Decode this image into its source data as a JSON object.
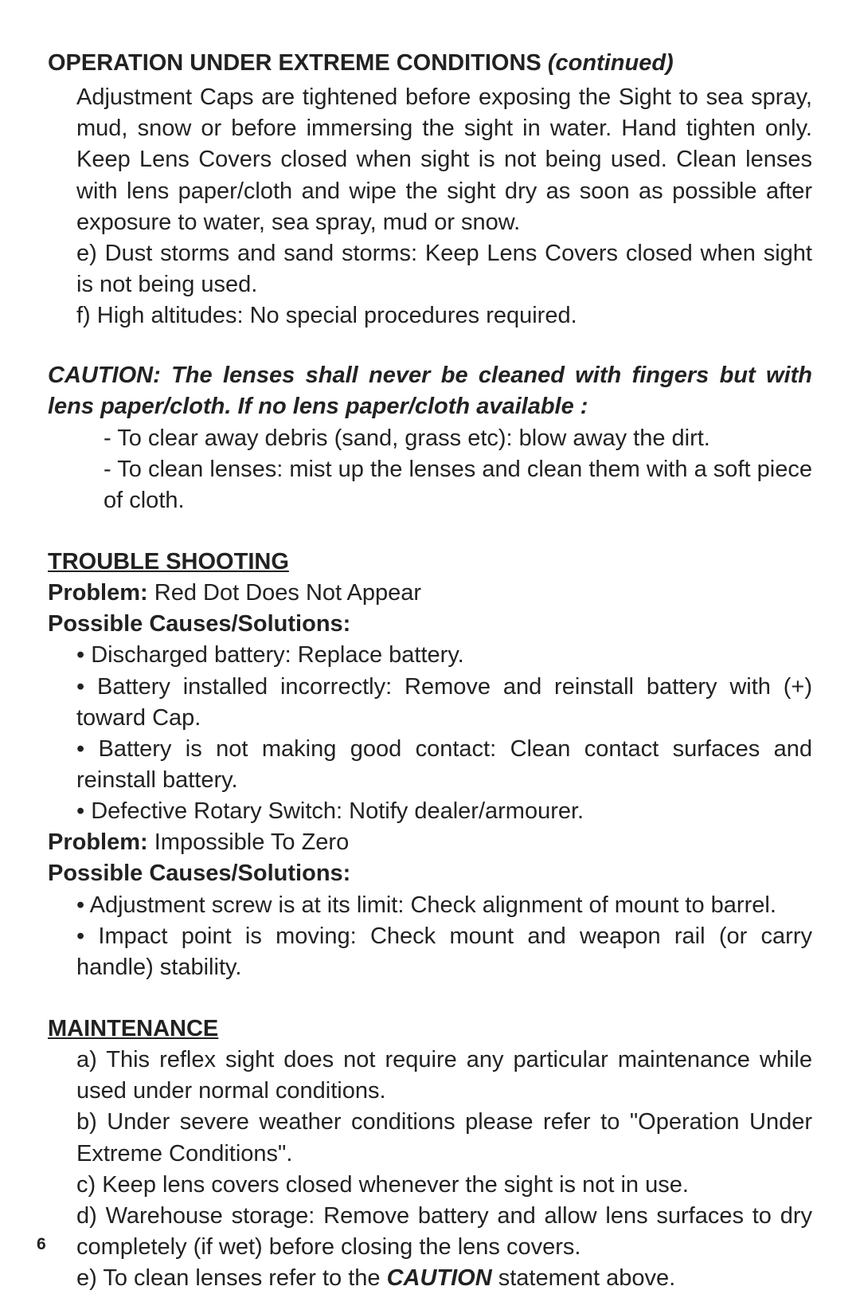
{
  "page_number": "6",
  "colors": {
    "text": "#222222",
    "background": "#ffffff"
  },
  "typography": {
    "body_fontsize_pt": 22,
    "heading_fontsize_pt": 22,
    "pagenum_fontsize_pt": 16,
    "font_family": "Myriad Pro / sans-serif"
  },
  "section_operation": {
    "heading_main": "OPERATION UNDER EXTREME CONDITIONS ",
    "heading_cont": "(continued)",
    "para1": "Adjustment Caps are tightened before exposing the Sight to sea spray, mud, snow or before immersing the sight in water. Hand tighten only. Keep Lens Covers closed when sight is not being used. Clean lenses with lens paper/cloth and wipe the sight dry as soon as possible after exposure to water, sea spray, mud or snow.",
    "para_e": "e) Dust storms and sand storms: Keep Lens Covers closed when sight is not being used.",
    "para_f": "f) High altitudes: No special procedures required."
  },
  "caution": {
    "text": "CAUTION: The lenses shall never be cleaned with fingers but with lens paper/cloth. If no lens paper/cloth available :",
    "item1": "- To clear away debris (sand, grass etc): blow away the dirt.",
    "item2": "- To clean lenses: mist up the lenses and clean them with a soft piece of cloth."
  },
  "troubleshooting": {
    "heading": "TROUBLE SHOOTING",
    "problem1_label": "Problem: ",
    "problem1_text": "Red Dot Does Not Appear",
    "pcs_label": "Possible Causes/Solutions:",
    "p1_items": [
      "• Discharged battery: Replace battery.",
      "•  Battery installed incorrectly: Remove and reinstall battery with (+) toward Cap.",
      "•  Battery is not making good contact: Clean contact surfaces and reinstall battery.",
      "•  Defective Rotary Switch: Notify dealer/armourer."
    ],
    "problem2_label": "Problem: ",
    "problem2_text": "Impossible To Zero",
    "p2_items": [
      "•  Adjustment screw is at its limit: Check alignment of mount to barrel.",
      "•  Impact point is moving: Check mount and weapon rail (or carry handle) stability."
    ]
  },
  "maintenance": {
    "heading": "MAINTENANCE",
    "item_a": "a) This reflex sight does not require any particular maintenance while used under normal conditions.",
    "item_b": "b) Under severe weather conditions please refer to \"Operation Under Extreme Conditions\".",
    "item_c": "c) Keep lens covers closed whenever the sight is not in use.",
    "item_d": "d) Warehouse storage: Remove battery and allow lens surfaces to dry completely (if wet) before closing the lens covers.",
    "item_e_pre": "e) To clean lenses refer to the ",
    "item_e_caution": "CAUTION",
    "item_e_post": " statement above."
  }
}
